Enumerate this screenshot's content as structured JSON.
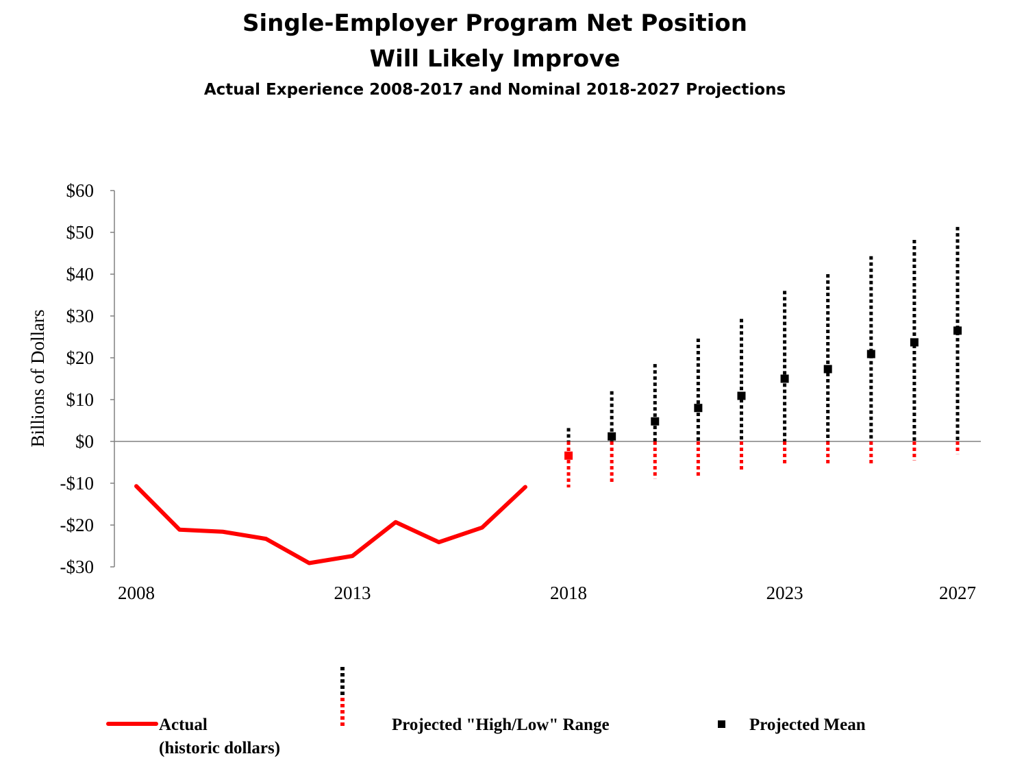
{
  "chart_data": {
    "type": "line",
    "title": "Single-Employer Program Net Position",
    "title_line2": "Will Likely Improve",
    "subtitle": "Actual Experience 2008-2017 and  Nominal 2018-2027 Projections",
    "ylabel": "Billions of Dollars",
    "xlabel": "",
    "ylim": [
      -30,
      60
    ],
    "xlim": [
      2008,
      2027
    ],
    "y_ticks": [
      60,
      50,
      40,
      30,
      20,
      10,
      0,
      -10,
      -20,
      -30
    ],
    "y_tick_labels": [
      "$60",
      "$50",
      "$40",
      "$30",
      "$20",
      "$10",
      "$0",
      "-$10",
      "-$20",
      "-$30"
    ],
    "x_tick_labels": [
      "2008",
      "2013",
      "2018",
      "2023",
      "2027"
    ],
    "x_ticks": [
      2008,
      2013,
      2018,
      2023,
      2027
    ],
    "grid": false,
    "legend_position": "bottom",
    "series": [
      {
        "name": "Actual (historic dollars)",
        "kind": "line",
        "color": "#ff0000",
        "x": [
          2008,
          2009,
          2010,
          2011,
          2012,
          2013,
          2014,
          2015,
          2016,
          2017
        ],
        "values": [
          -10.7,
          -21.1,
          -21.6,
          -23.3,
          -29.1,
          -27.4,
          -19.3,
          -24.1,
          -20.6,
          -10.9
        ]
      },
      {
        "name": "Projected \"High/Low\" Range",
        "kind": "range",
        "color_positive": "#000000",
        "color_negative": "#ff0000",
        "x": [
          2018,
          2019,
          2020,
          2021,
          2022,
          2023,
          2024,
          2025,
          2026,
          2027
        ],
        "high": [
          3.2,
          12.0,
          18.5,
          24.6,
          29.3,
          36.0,
          40.0,
          44.3,
          48.2,
          51.3
        ],
        "low": [
          -11.0,
          -9.9,
          -8.9,
          -8.3,
          -7.3,
          -5.5,
          -5.9,
          -5.7,
          -4.5,
          -3.0
        ]
      },
      {
        "name": "Projected Mean",
        "kind": "marker",
        "color_positive": "#000000",
        "color_negative": "#ff0000",
        "x": [
          2018,
          2019,
          2020,
          2021,
          2022,
          2023,
          2024,
          2025,
          2026,
          2027
        ],
        "values": [
          -3.4,
          1.2,
          4.8,
          8.0,
          10.9,
          15.0,
          17.3,
          20.9,
          23.7,
          26.5
        ]
      }
    ]
  },
  "legend": {
    "actual_line1": "Actual",
    "actual_line2": "(historic dollars)",
    "range": "Projected \"High/Low\" Range",
    "mean": "Projected Mean"
  }
}
